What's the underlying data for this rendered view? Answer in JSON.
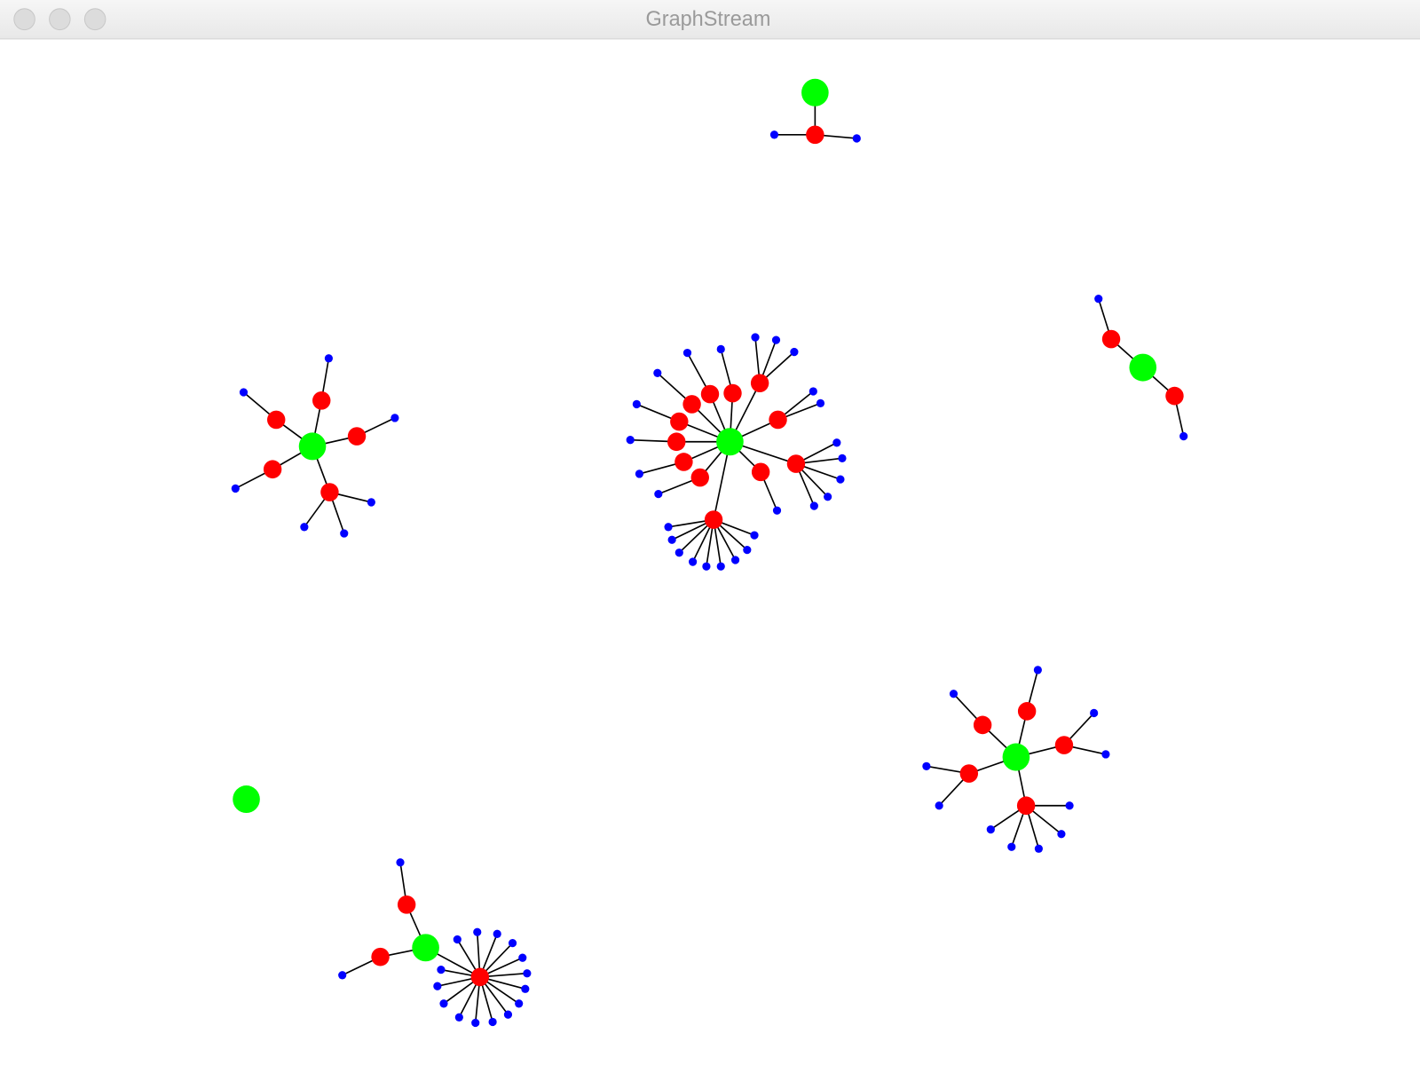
{
  "window": {
    "title": "GraphStream"
  }
}
